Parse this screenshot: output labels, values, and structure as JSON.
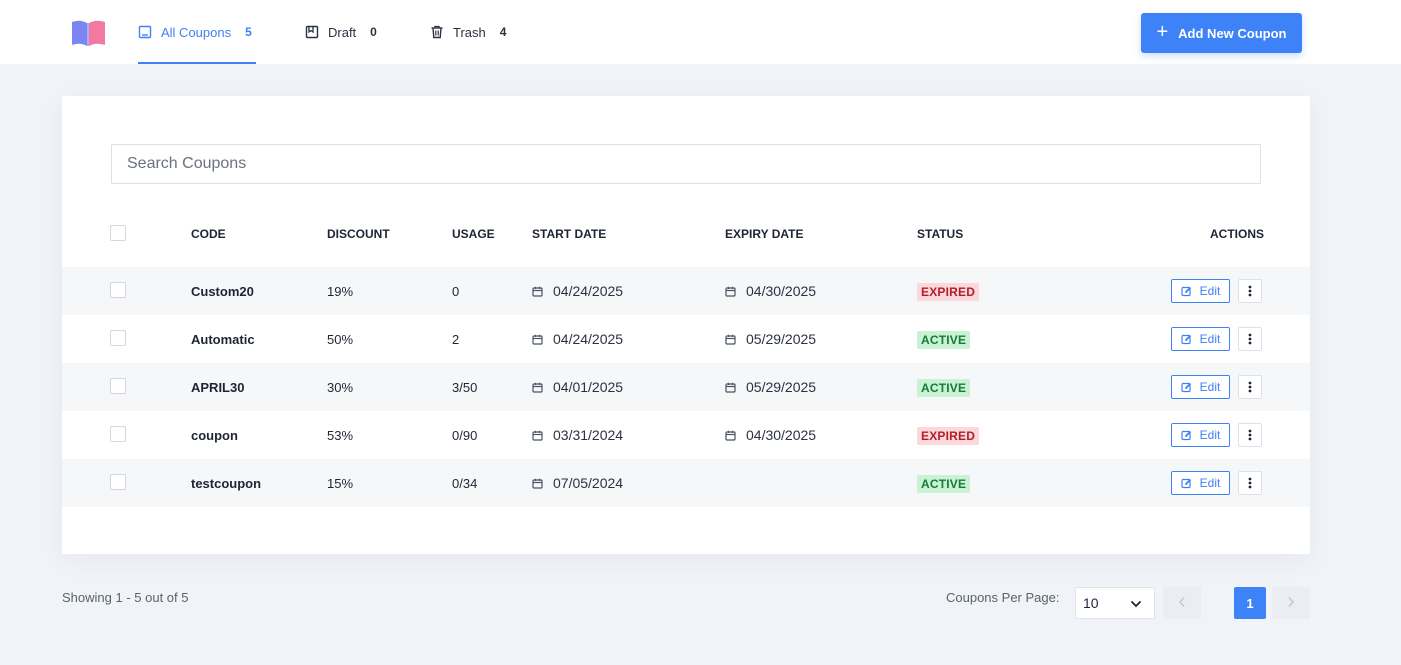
{
  "header": {
    "logo_icon": "book-logo-icon",
    "tabs": [
      {
        "label": "All Coupons",
        "count": "5",
        "icon": "list-icon",
        "active": true
      },
      {
        "label": "Draft",
        "count": "0",
        "icon": "draft-icon",
        "active": false
      },
      {
        "label": "Trash",
        "count": "4",
        "icon": "trash-icon",
        "active": false
      }
    ],
    "add_button_label": "Add New Coupon"
  },
  "search": {
    "placeholder": "Search Coupons",
    "value": ""
  },
  "table": {
    "columns": {
      "code": "CODE",
      "discount": "DISCOUNT",
      "usage": "USAGE",
      "start_date": "START DATE",
      "expiry_date": "EXPIRY DATE",
      "status": "STATUS",
      "actions": "ACTIONS"
    },
    "edit_label": "Edit",
    "rows": [
      {
        "code": "Custom20",
        "discount": "19%",
        "usage": "0",
        "start": "04/24/2025",
        "expiry": "04/30/2025",
        "status": "EXPIRED"
      },
      {
        "code": "Automatic",
        "discount": "50%",
        "usage": "2",
        "start": "04/24/2025",
        "expiry": "05/29/2025",
        "status": "ACTIVE"
      },
      {
        "code": "APRIL30",
        "discount": "30%",
        "usage": "3/50",
        "start": "04/01/2025",
        "expiry": "05/29/2025",
        "status": "ACTIVE"
      },
      {
        "code": "coupon",
        "discount": "53%",
        "usage": "0/90",
        "start": "03/31/2024",
        "expiry": "04/30/2025",
        "status": "EXPIRED"
      },
      {
        "code": "testcoupon",
        "discount": "15%",
        "usage": "0/34",
        "start": "07/05/2024",
        "expiry": "",
        "status": "ACTIVE"
      }
    ]
  },
  "footer": {
    "showing": "Showing 1 - 5 out of 5",
    "per_page_label": "Coupons Per Page:",
    "per_page_value": "10",
    "current_page": "1"
  },
  "colors": {
    "accent": "#3e82f7",
    "expired_bg": "#fbd9da",
    "expired_text": "#b01e2a",
    "active_bg": "#c9f2d5",
    "active_text": "#167a3a"
  }
}
